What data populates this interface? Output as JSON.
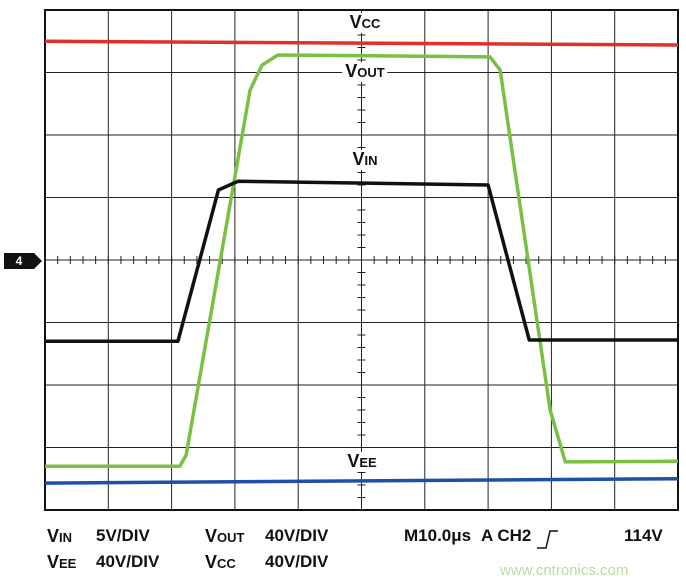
{
  "chart_data": {
    "type": "line",
    "xlim": [
      0,
      10
    ],
    "ylim": [
      -4,
      4
    ],
    "grid": true,
    "ground_marker": "4",
    "series": [
      {
        "name": "VCC",
        "color": "#e0302a",
        "x": [
          0,
          10
        ],
        "values": [
          3.5,
          3.44
        ]
      },
      {
        "name": "VOUT",
        "color": "#7ac143",
        "x": [
          0,
          2.13,
          2.23,
          3.24,
          3.43,
          3.68,
          7.03,
          7.19,
          7.98,
          8.22,
          10
        ],
        "values": [
          -3.3,
          -3.3,
          -3.12,
          2.72,
          3.12,
          3.28,
          3.25,
          3.04,
          -2.4,
          -3.23,
          -3.22
        ]
      },
      {
        "name": "VIN",
        "color": "#111111",
        "x": [
          0,
          2.1,
          2.74,
          3.05,
          7.0,
          7.65,
          10
        ],
        "values": [
          -1.3,
          -1.3,
          1.12,
          1.26,
          1.2,
          -1.28,
          -1.28
        ]
      },
      {
        "name": "VEE",
        "color": "#1f4fa8",
        "x": [
          0,
          10
        ],
        "values": [
          -3.57,
          -3.5
        ]
      }
    ],
    "scales": [
      {
        "channel": "VIN",
        "setting": "5V/DIV"
      },
      {
        "channel": "VOUT",
        "setting": "40V/DIV"
      },
      {
        "channel": "VEE",
        "setting": "40V/DIV"
      },
      {
        "channel": "VCC",
        "setting": "40V/DIV"
      }
    ],
    "timebase": "M10.0μs",
    "trigger": {
      "source": "A CH2",
      "level": "114V"
    },
    "watermark": "www.cntronics.com"
  }
}
